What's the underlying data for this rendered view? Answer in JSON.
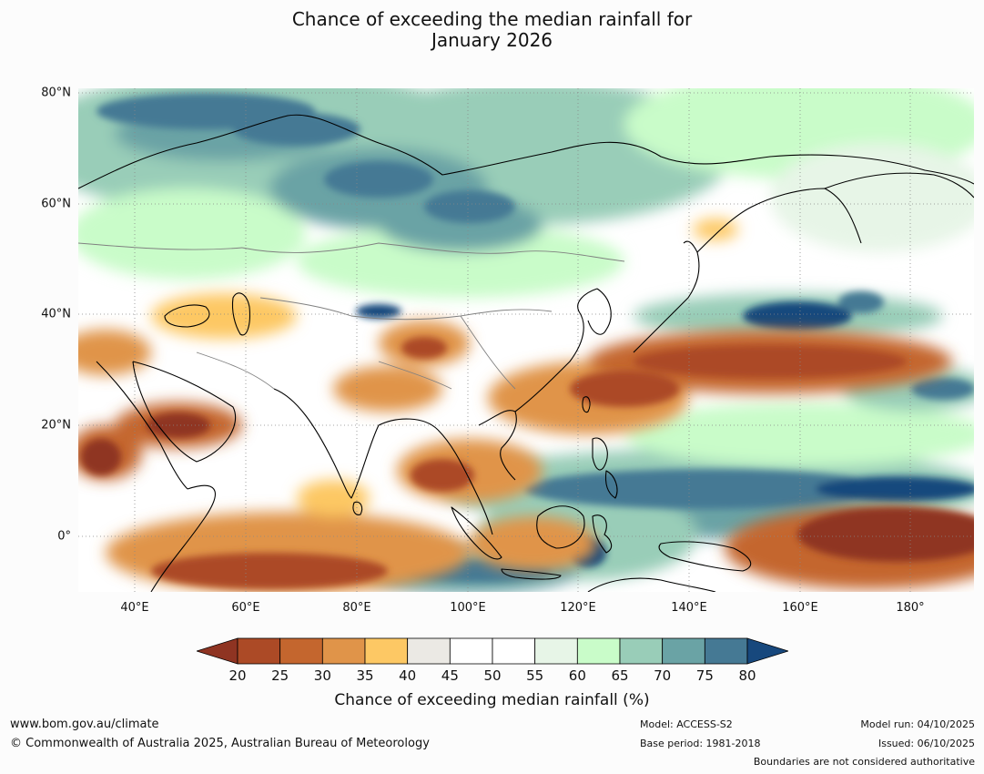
{
  "title_line1": "Chance of exceeding the median rainfall for",
  "title_line2": "January 2026",
  "lat_labels": [
    "80°N",
    "60°N",
    "40°N",
    "20°N",
    "0°"
  ],
  "lon_labels": [
    "40°E",
    "60°E",
    "80°E",
    "100°E",
    "120°E",
    "140°E",
    "160°E",
    "180°"
  ],
  "colorbar": {
    "ticks": [
      "20",
      "25",
      "30",
      "35",
      "40",
      "45",
      "50",
      "55",
      "60",
      "65",
      "70",
      "75",
      "80"
    ],
    "colors": [
      "#8f3422",
      "#ac4a26",
      "#c4662e",
      "#e09449",
      "#fdc864",
      "#ebe9e4",
      "#ffffff",
      "#ffffff",
      "#e7f5e7",
      "#c9fcc9",
      "#99cdb8",
      "#6aa3a5",
      "#457994",
      "#17487d"
    ],
    "label": "Chance of exceeding median rainfall (%)"
  },
  "footer": {
    "url": "www.bom.gov.au/climate",
    "copyright": "© Commonwealth of Australia 2025, Australian Bureau of Meteorology",
    "model": "Model: ACCESS-S2",
    "base_period": "Base period: 1981-2018",
    "model_run": "Model run: 04/10/2025",
    "issued": "Issued: 06/10/2025",
    "disclaimer": "Boundaries are not considered authoritative"
  }
}
